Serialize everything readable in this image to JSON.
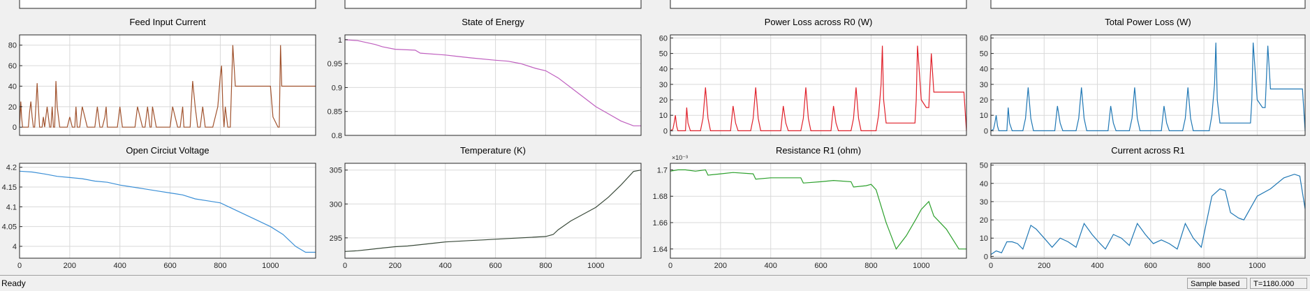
{
  "status": {
    "text": "Ready",
    "mode": "Sample based",
    "time": "T=1180.000"
  },
  "chart_data": [
    {
      "type": "line",
      "title": "Feed Input Current",
      "color": "#a0522d",
      "xlim": [
        0,
        1180
      ],
      "ylim": [
        -8,
        90
      ],
      "xticks": [],
      "yticks": [
        0,
        20,
        40,
        60,
        80
      ],
      "ytick_labels": [
        "0",
        "20",
        "40",
        "60",
        "80"
      ],
      "xtick_labels": [],
      "x": [
        0,
        5,
        8,
        12,
        15,
        30,
        35,
        40,
        45,
        50,
        55,
        60,
        65,
        70,
        75,
        80,
        90,
        95,
        100,
        110,
        120,
        125,
        130,
        135,
        140,
        145,
        150,
        160,
        170,
        180,
        190,
        200,
        210,
        220,
        225,
        230,
        240,
        250,
        270,
        280,
        300,
        310,
        320,
        330,
        340,
        345,
        350,
        370,
        390,
        400,
        410,
        440,
        460,
        470,
        480,
        490,
        500,
        510,
        520,
        525,
        530,
        545,
        560,
        580,
        600,
        610,
        620,
        630,
        640,
        650,
        655,
        660,
        680,
        690,
        700,
        710,
        720,
        730,
        740,
        750,
        760,
        770,
        790,
        800,
        805,
        810,
        815,
        820,
        830,
        840,
        850,
        855,
        860,
        870,
        880,
        900,
        930,
        980,
        985,
        990,
        995,
        1000,
        1010,
        1030,
        1035,
        1040,
        1045,
        1050,
        1060,
        1100,
        1170,
        1180
      ],
      "y": [
        0,
        25,
        10,
        0,
        0,
        0,
        0,
        15,
        25,
        10,
        0,
        0,
        20,
        43,
        20,
        0,
        0,
        10,
        0,
        20,
        0,
        0,
        20,
        0,
        0,
        45,
        20,
        0,
        0,
        0,
        0,
        10,
        0,
        0,
        20,
        0,
        0,
        20,
        0,
        0,
        0,
        20,
        0,
        0,
        10,
        20,
        0,
        0,
        0,
        20,
        0,
        0,
        0,
        20,
        10,
        0,
        0,
        20,
        0,
        0,
        20,
        0,
        0,
        0,
        0,
        20,
        10,
        0,
        0,
        20,
        0,
        0,
        0,
        45,
        20,
        0,
        0,
        20,
        0,
        0,
        0,
        0,
        20,
        50,
        60,
        20,
        0,
        20,
        0,
        0,
        80,
        60,
        40,
        40,
        40,
        40,
        40,
        40,
        40,
        40,
        40,
        40,
        10,
        0,
        0,
        80,
        40,
        40,
        40,
        40,
        40,
        40
      ]
    },
    {
      "type": "line",
      "title": "State of Energy",
      "color": "#bf5fbf",
      "xlim": [
        0,
        1180
      ],
      "ylim": [
        0.8,
        1.01
      ],
      "xticks": [],
      "yticks": [
        0.8,
        0.85,
        0.9,
        0.95,
        1
      ],
      "ytick_labels": [
        "0.8",
        "0.85",
        "0.9",
        "0.95",
        "1"
      ],
      "xtick_labels": [],
      "x": [
        0,
        50,
        120,
        150,
        200,
        280,
        300,
        400,
        450,
        500,
        600,
        650,
        700,
        760,
        800,
        850,
        900,
        950,
        1000,
        1050,
        1100,
        1150,
        1180
      ],
      "y": [
        1,
        0.998,
        0.99,
        0.985,
        0.98,
        0.978,
        0.972,
        0.968,
        0.965,
        0.962,
        0.957,
        0.955,
        0.95,
        0.94,
        0.935,
        0.92,
        0.9,
        0.88,
        0.86,
        0.845,
        0.83,
        0.82,
        0.82
      ]
    },
    {
      "type": "line",
      "title": "Power Loss across R0 (W)",
      "color": "#e0202a",
      "xlim": [
        0,
        1180
      ],
      "ylim": [
        -3,
        62
      ],
      "xticks": [],
      "yticks": [
        0,
        10,
        20,
        30,
        40,
        50,
        60
      ],
      "ytick_labels": [
        "0",
        "10",
        "20",
        "30",
        "40",
        "50",
        "60"
      ],
      "xtick_labels": [],
      "x": [
        0,
        10,
        15,
        20,
        25,
        30,
        60,
        65,
        70,
        80,
        120,
        130,
        140,
        150,
        160,
        200,
        240,
        250,
        260,
        270,
        320,
        330,
        340,
        350,
        360,
        400,
        440,
        450,
        460,
        470,
        520,
        530,
        540,
        550,
        560,
        600,
        640,
        650,
        660,
        670,
        720,
        730,
        740,
        750,
        760,
        800,
        820,
        830,
        840,
        845,
        850,
        860,
        900,
        950,
        975,
        980,
        985,
        1000,
        1020,
        1030,
        1040,
        1050,
        1060,
        1100,
        1170,
        1180
      ],
      "y": [
        0,
        1,
        5,
        10,
        3,
        0,
        0,
        15,
        5,
        0,
        0,
        8,
        28,
        8,
        0,
        0,
        0,
        16,
        5,
        0,
        0,
        8,
        28,
        8,
        0,
        0,
        0,
        16,
        5,
        0,
        0,
        8,
        28,
        8,
        0,
        0,
        0,
        16,
        5,
        0,
        0,
        8,
        28,
        8,
        0,
        0,
        0,
        10,
        30,
        55,
        20,
        5,
        5,
        5,
        5,
        20,
        55,
        20,
        15,
        15,
        50,
        25,
        25,
        25,
        25,
        0
      ]
    },
    {
      "type": "line",
      "title": "Total Power Loss (W)",
      "color": "#1f77b4",
      "xlim": [
        0,
        1180
      ],
      "ylim": [
        -3,
        62
      ],
      "xticks": [],
      "yticks": [
        0,
        10,
        20,
        30,
        40,
        50,
        60
      ],
      "ytick_labels": [
        "0",
        "10",
        "20",
        "30",
        "40",
        "50",
        "60"
      ],
      "xtick_labels": [],
      "x": [
        0,
        10,
        15,
        20,
        25,
        30,
        60,
        65,
        70,
        80,
        120,
        130,
        140,
        150,
        160,
        200,
        240,
        250,
        260,
        270,
        320,
        330,
        340,
        350,
        360,
        400,
        440,
        450,
        460,
        470,
        520,
        530,
        540,
        550,
        560,
        600,
        640,
        650,
        660,
        670,
        720,
        730,
        740,
        750,
        760,
        800,
        820,
        830,
        840,
        845,
        850,
        860,
        900,
        950,
        975,
        980,
        985,
        1000,
        1020,
        1030,
        1040,
        1050,
        1060,
        1100,
        1170,
        1180
      ],
      "y": [
        0,
        1,
        5,
        10,
        3,
        0,
        0,
        15,
        5,
        0,
        0,
        8,
        28,
        8,
        0,
        0,
        0,
        16,
        5,
        0,
        0,
        8,
        28,
        8,
        0,
        0,
        0,
        16,
        5,
        0,
        0,
        8,
        28,
        8,
        0,
        0,
        0,
        16,
        5,
        0,
        0,
        8,
        28,
        8,
        0,
        0,
        0,
        10,
        30,
        57,
        20,
        5,
        5,
        5,
        5,
        20,
        57,
        20,
        15,
        15,
        55,
        27,
        27,
        27,
        27,
        0
      ]
    },
    {
      "type": "line",
      "title": "Open Circiut Voltage",
      "color": "#3b8fd6",
      "xlim": [
        0,
        1180
      ],
      "ylim": [
        3.97,
        4.21
      ],
      "xticks": [
        0,
        200,
        400,
        600,
        800,
        1000
      ],
      "xtick_labels": [
        "0",
        "200",
        "400",
        "600",
        "800",
        "1000"
      ],
      "yticks": [
        4,
        4.05,
        4.1,
        4.15,
        4.2
      ],
      "ytick_labels": [
        "4",
        "4.05",
        "4.1",
        "4.15",
        "4.2"
      ],
      "x": [
        0,
        50,
        100,
        150,
        200,
        250,
        300,
        350,
        400,
        450,
        500,
        550,
        600,
        650,
        700,
        750,
        800,
        850,
        900,
        950,
        1000,
        1050,
        1100,
        1140,
        1180
      ],
      "y": [
        4.19,
        4.188,
        4.183,
        4.177,
        4.174,
        4.171,
        4.165,
        4.162,
        4.155,
        4.15,
        4.145,
        4.14,
        4.135,
        4.13,
        4.12,
        4.115,
        4.11,
        4.095,
        4.08,
        4.065,
        4.05,
        4.03,
        4.0,
        3.985,
        3.985
      ]
    },
    {
      "type": "line",
      "title": "Temperature (K)",
      "color": "#3a4a3a",
      "xlim": [
        0,
        1180
      ],
      "ylim": [
        292,
        306
      ],
      "xticks": [
        0,
        200,
        400,
        600,
        800,
        1000
      ],
      "xtick_labels": [
        "0",
        "200",
        "400",
        "600",
        "800",
        "1000"
      ],
      "yticks": [
        295,
        300,
        305
      ],
      "ytick_labels": [
        "295",
        "300",
        "305"
      ],
      "x": [
        0,
        50,
        100,
        150,
        200,
        250,
        300,
        350,
        400,
        450,
        500,
        550,
        600,
        650,
        700,
        750,
        800,
        830,
        850,
        900,
        950,
        1000,
        1050,
        1100,
        1150,
        1180
      ],
      "y": [
        293,
        293.1,
        293.3,
        293.5,
        293.7,
        293.8,
        294,
        294.2,
        294.4,
        294.5,
        294.6,
        294.7,
        294.8,
        294.9,
        295,
        295.1,
        295.2,
        295.5,
        296.2,
        297.5,
        298.5,
        299.5,
        301,
        302.8,
        304.8,
        305
      ]
    },
    {
      "type": "line",
      "title": "Resistance R1 (ohm)",
      "color": "#2ca02c",
      "exponent_label": "×10⁻³",
      "xlim": [
        0,
        1180
      ],
      "ylim": [
        1.633,
        1.705
      ],
      "xticks": [
        0,
        200,
        400,
        600,
        800,
        1000
      ],
      "xtick_labels": [
        "0",
        "200",
        "400",
        "600",
        "800",
        "1000"
      ],
      "yticks": [
        1.64,
        1.66,
        1.68,
        1.7
      ],
      "ytick_labels": [
        "1.64",
        "1.66",
        "1.68",
        "1.7"
      ],
      "x": [
        0,
        30,
        60,
        100,
        140,
        150,
        200,
        250,
        330,
        340,
        400,
        450,
        520,
        530,
        600,
        650,
        720,
        730,
        780,
        800,
        820,
        860,
        900,
        940,
        980,
        1000,
        1030,
        1050,
        1100,
        1150,
        1180
      ],
      "y": [
        1.699,
        1.7,
        1.7,
        1.699,
        1.7,
        1.696,
        1.697,
        1.698,
        1.697,
        1.693,
        1.694,
        1.694,
        1.694,
        1.69,
        1.691,
        1.692,
        1.691,
        1.687,
        1.688,
        1.689,
        1.685,
        1.66,
        1.64,
        1.65,
        1.663,
        1.67,
        1.676,
        1.665,
        1.655,
        1.64,
        1.64
      ]
    },
    {
      "type": "line",
      "title": "Current across R1",
      "color": "#1f77b4",
      "xlim": [
        0,
        1180
      ],
      "ylim": [
        -1,
        51
      ],
      "xticks": [
        0,
        200,
        400,
        600,
        800,
        1000
      ],
      "xtick_labels": [
        "0",
        "200",
        "400",
        "600",
        "800",
        "1000"
      ],
      "yticks": [
        0,
        10,
        20,
        30,
        40,
        50
      ],
      "ytick_labels": [
        "0",
        "10",
        "20",
        "30",
        "40",
        "50"
      ],
      "x": [
        0,
        20,
        40,
        60,
        80,
        100,
        120,
        150,
        170,
        200,
        230,
        260,
        290,
        320,
        350,
        380,
        410,
        430,
        460,
        490,
        520,
        550,
        580,
        610,
        640,
        670,
        700,
        730,
        760,
        790,
        830,
        860,
        880,
        900,
        930,
        950,
        1000,
        1050,
        1100,
        1140,
        1160,
        1180
      ],
      "y": [
        1,
        3,
        2,
        8,
        8,
        7,
        4,
        17,
        15,
        10,
        5,
        10,
        8,
        5,
        18,
        12,
        7,
        4,
        12,
        10,
        6,
        18,
        12,
        7,
        9,
        7,
        4,
        18,
        10,
        5,
        33,
        37,
        36,
        24,
        21,
        20,
        33,
        37,
        43,
        45,
        44,
        26
      ]
    }
  ]
}
